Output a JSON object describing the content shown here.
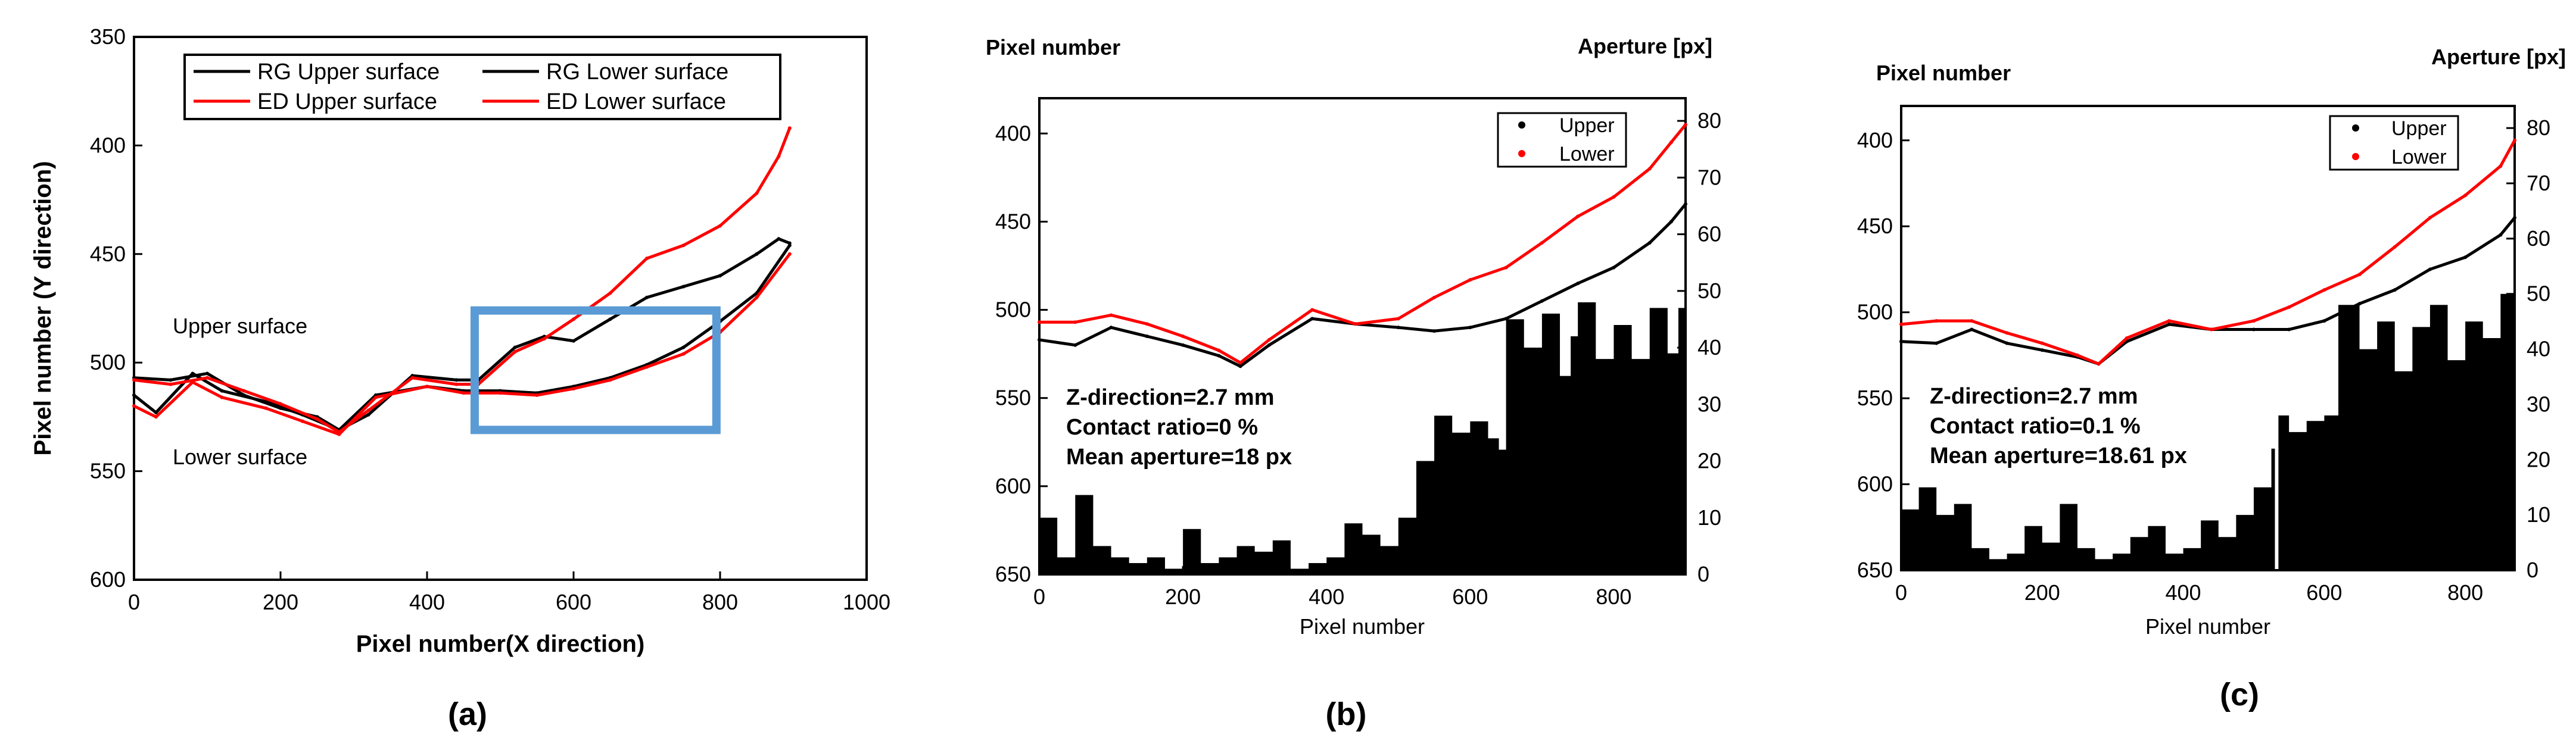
{
  "chart_data": [
    {
      "id": "a",
      "type": "line",
      "panel_label": "(a)",
      "xlabel": "Pixel number(X direction)",
      "ylabel": "Pixel number (Y direction)",
      "xlim": [
        0,
        1000
      ],
      "ylim": [
        350,
        600
      ],
      "y_inverted": true,
      "xticks": [
        0,
        200,
        400,
        600,
        800,
        1000
      ],
      "yticks": [
        350,
        400,
        450,
        500,
        550,
        600
      ],
      "legend": {
        "placement": "top",
        "entries": [
          {
            "name": "RG Upper surface",
            "color": "#000000"
          },
          {
            "name": "RG Lower surface",
            "color": "#000000"
          },
          {
            "name": "ED Upper surface",
            "color": "#ff0000"
          },
          {
            "name": "ED Lower surface",
            "color": "#ff0000"
          }
        ]
      },
      "annotations": [
        "Upper surface",
        "Lower surface"
      ],
      "highlight_region": {
        "x": [
          465,
          795
        ],
        "y": [
          476,
          531
        ],
        "color": "#5b9bd5"
      },
      "series": [
        {
          "name": "RG Upper surface",
          "color": "#000000",
          "x": [
            0,
            50,
            100,
            150,
            200,
            250,
            280,
            320,
            380,
            440,
            470,
            520,
            560,
            600,
            650,
            700,
            750,
            800,
            850,
            880,
            895
          ],
          "y": [
            507,
            508,
            505,
            515,
            521,
            525,
            531,
            524,
            506,
            508,
            508,
            493,
            488,
            490,
            480,
            470,
            465,
            460,
            450,
            443,
            445
          ]
        },
        {
          "name": "RG Lower surface",
          "color": "#000000",
          "x": [
            0,
            30,
            80,
            120,
            180,
            230,
            280,
            330,
            400,
            450,
            500,
            550,
            600,
            650,
            700,
            750,
            800,
            850,
            895
          ],
          "y": [
            515,
            523,
            505,
            513,
            518,
            524,
            531,
            515,
            511,
            513,
            513,
            514,
            511,
            507,
            501,
            493,
            481,
            468,
            446
          ]
        },
        {
          "name": "ED Upper surface",
          "color": "#ff0000",
          "x": [
            0,
            50,
            100,
            150,
            200,
            250,
            280,
            320,
            380,
            440,
            470,
            520,
            560,
            600,
            650,
            700,
            750,
            800,
            850,
            880,
            895
          ],
          "y": [
            508,
            510,
            507,
            513,
            519,
            526,
            532,
            522,
            507,
            510,
            510,
            495,
            489,
            480,
            468,
            452,
            446,
            437,
            422,
            405,
            392
          ]
        },
        {
          "name": "ED Lower surface",
          "color": "#ff0000",
          "x": [
            0,
            30,
            80,
            120,
            180,
            230,
            280,
            330,
            400,
            450,
            500,
            550,
            600,
            650,
            700,
            750,
            800,
            850,
            895
          ],
          "y": [
            520,
            525,
            509,
            516,
            521,
            527,
            533,
            516,
            511,
            514,
            514,
            515,
            512,
            508,
            502,
            496,
            486,
            470,
            450
          ]
        }
      ]
    },
    {
      "id": "b",
      "type": "line",
      "panel_label": "(b)",
      "ylabel_left": "Pixel number",
      "ylabel_right": "Aperture [px]",
      "xlabel": "Pixel number",
      "xlim": [
        0,
        900
      ],
      "ylim_left": [
        380,
        650
      ],
      "ylim_right": [
        0,
        84
      ],
      "y_inverted": true,
      "xticks": [
        0,
        200,
        400,
        600,
        800
      ],
      "yticks_left": [
        400,
        450,
        500,
        550,
        600,
        650
      ],
      "yticks_right": [
        0,
        10,
        20,
        30,
        40,
        50,
        60,
        70,
        80
      ],
      "legend": {
        "placement": "top-right",
        "entries": [
          {
            "name": "Upper",
            "color": "#000000"
          },
          {
            "name": "Lower",
            "color": "#ff0000"
          }
        ]
      },
      "text_lines": [
        "Z-direction=2.7 mm",
        "Contact ratio=0 %",
        "Mean aperture=18 px"
      ],
      "series": [
        {
          "name": "Upper",
          "color": "#000000",
          "x": [
            0,
            50,
            100,
            150,
            200,
            250,
            280,
            320,
            380,
            440,
            500,
            550,
            600,
            650,
            700,
            750,
            800,
            850,
            880,
            900
          ],
          "y": [
            517,
            520,
            510,
            515,
            520,
            526,
            532,
            520,
            505,
            508,
            510,
            512,
            510,
            505,
            495,
            485,
            476,
            462,
            450,
            440
          ]
        },
        {
          "name": "Lower",
          "color": "#ff0000",
          "x": [
            0,
            50,
            100,
            150,
            200,
            250,
            280,
            320,
            380,
            440,
            500,
            550,
            600,
            650,
            700,
            750,
            800,
            850,
            880,
            900
          ],
          "y": [
            507,
            507,
            503,
            508,
            515,
            523,
            530,
            517,
            500,
            508,
            505,
            493,
            483,
            476,
            462,
            447,
            436,
            420,
            405,
            395
          ]
        },
        {
          "name": "Aperture",
          "type": "area",
          "axis": "right",
          "color": "#000000",
          "x": [
            0,
            25,
            50,
            75,
            100,
            125,
            150,
            175,
            200,
            225,
            250,
            275,
            300,
            325,
            350,
            375,
            400,
            425,
            450,
            475,
            500,
            525,
            550,
            575,
            600,
            625,
            640,
            650,
            675,
            700,
            725,
            740,
            750,
            775,
            800,
            825,
            850,
            875,
            890,
            900
          ],
          "y": [
            10,
            3,
            14,
            5,
            3,
            2,
            3,
            1,
            8,
            2,
            3,
            5,
            4,
            6,
            1,
            2,
            3,
            9,
            7,
            5,
            10,
            20,
            28,
            25,
            27,
            24,
            22,
            45,
            40,
            46,
            35,
            42,
            48,
            38,
            44,
            38,
            47,
            39,
            47,
            40
          ]
        }
      ]
    },
    {
      "id": "c",
      "type": "line",
      "panel_label": "(c)",
      "ylabel_left": "Pixel number",
      "ylabel_right": "Aperture [px]",
      "xlabel": "Pixel number",
      "xlim": [
        0,
        870
      ],
      "ylim_left": [
        380,
        650
      ],
      "ylim_right": [
        0,
        84
      ],
      "y_inverted": true,
      "xticks": [
        0,
        200,
        400,
        600,
        800
      ],
      "yticks_left": [
        400,
        450,
        500,
        550,
        600,
        650
      ],
      "yticks_right": [
        0,
        10,
        20,
        30,
        40,
        50,
        60,
        70,
        80
      ],
      "legend": {
        "placement": "top-right",
        "entries": [
          {
            "name": "Upper",
            "color": "#000000"
          },
          {
            "name": "Lower",
            "color": "#ff0000"
          }
        ]
      },
      "text_lines": [
        "Z-direction=2.7 mm",
        "Contact ratio=0.1 %",
        "Mean aperture=18.61 px"
      ],
      "series": [
        {
          "name": "Upper",
          "color": "#000000",
          "x": [
            0,
            50,
            100,
            150,
            200,
            250,
            280,
            320,
            380,
            440,
            500,
            550,
            600,
            650,
            700,
            750,
            800,
            850,
            870
          ],
          "y": [
            517,
            518,
            510,
            518,
            522,
            526,
            530,
            517,
            507,
            510,
            510,
            510,
            505,
            495,
            487,
            475,
            468,
            455,
            445
          ]
        },
        {
          "name": "Lower",
          "color": "#ff0000",
          "x": [
            0,
            50,
            100,
            150,
            200,
            250,
            280,
            320,
            380,
            440,
            500,
            550,
            600,
            650,
            700,
            750,
            800,
            850,
            870
          ],
          "y": [
            507,
            505,
            505,
            512,
            518,
            525,
            530,
            515,
            505,
            510,
            505,
            497,
            487,
            478,
            462,
            445,
            432,
            415,
            400
          ]
        },
        {
          "name": "Aperture",
          "type": "area",
          "axis": "right",
          "color": "#000000",
          "x": [
            0,
            25,
            50,
            75,
            100,
            125,
            150,
            175,
            200,
            225,
            250,
            275,
            300,
            325,
            350,
            375,
            400,
            425,
            450,
            475,
            500,
            525,
            530,
            535,
            550,
            575,
            600,
            620,
            650,
            675,
            700,
            725,
            750,
            775,
            800,
            825,
            850,
            870
          ],
          "y": [
            11,
            15,
            10,
            12,
            4,
            2,
            3,
            8,
            5,
            12,
            4,
            2,
            3,
            6,
            8,
            3,
            4,
            9,
            6,
            10,
            15,
            22,
            0,
            28,
            25,
            27,
            28,
            48,
            40,
            45,
            36,
            44,
            48,
            38,
            45,
            42,
            50,
            45
          ]
        }
      ]
    }
  ]
}
